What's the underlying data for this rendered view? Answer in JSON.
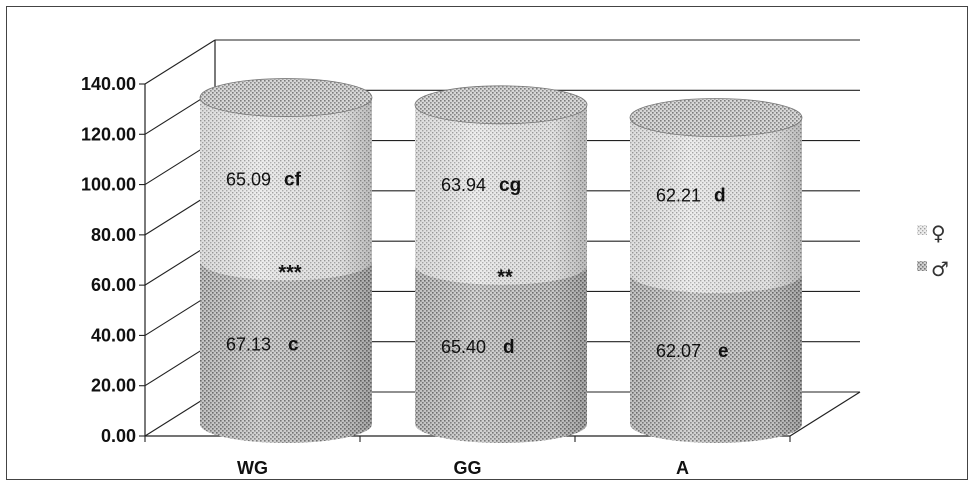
{
  "chart_data": {
    "type": "bar",
    "stacked": true,
    "categories": [
      "WG",
      "GG",
      "A"
    ],
    "series": [
      {
        "name": "♂",
        "values": [
          67.13,
          65.4,
          62.07
        ],
        "letters": [
          "c",
          "d",
          "e"
        ],
        "pattern_color": "#9a9a9a"
      },
      {
        "name": "♀",
        "values": [
          65.09,
          63.94,
          62.21
        ],
        "letters": [
          "cf",
          "cg",
          "d"
        ],
        "pattern_color": "#bdbdbd"
      }
    ],
    "value_labels": {
      "male": [
        "67.13",
        "65.40",
        "62.07"
      ],
      "female": [
        "65.09",
        "63.94",
        "62.21"
      ]
    },
    "significance": [
      "***",
      "**",
      ""
    ],
    "y_ticks": [
      "0.00",
      "20.00",
      "40.00",
      "60.00",
      "80.00",
      "100.00",
      "120.00",
      "140.00"
    ],
    "ylim": [
      0,
      140
    ],
    "grid": true,
    "legend_position": "right",
    "legend": [
      {
        "symbol": "♀",
        "series": 1
      },
      {
        "symbol": "♂",
        "series": 0
      }
    ]
  }
}
